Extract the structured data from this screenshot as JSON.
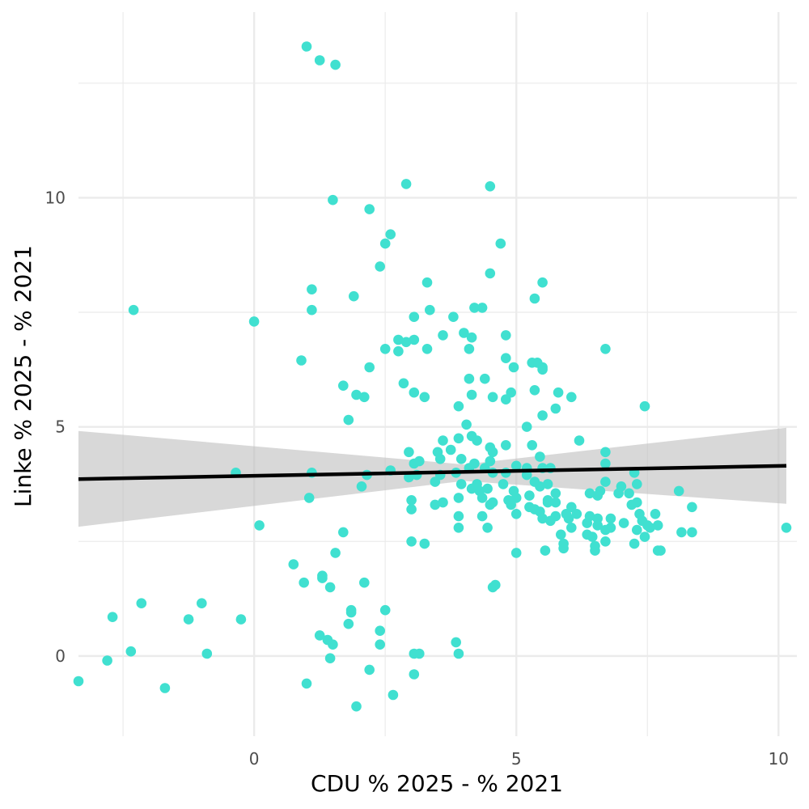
{
  "chart_data": {
    "type": "scatter",
    "xlabel": "CDU % 2025 - % 2021",
    "ylabel": "Linke % 2025 - % 2021",
    "xlim": [
      -3.35,
      10.35
    ],
    "ylim": [
      -1.75,
      14.05
    ],
    "x_ticks": [
      0,
      5,
      10
    ],
    "x_tick_labels": [
      "0",
      "5",
      "10"
    ],
    "y_ticks": [
      0,
      5,
      10
    ],
    "y_tick_labels": [
      "0",
      "5",
      "10"
    ],
    "x_minor_ticks": [
      -2.5,
      2.5,
      7.5
    ],
    "y_minor_ticks": [
      2.5,
      7.5,
      12.5
    ],
    "grid": true,
    "colors": {
      "points": "#40E0D0",
      "fit_line": "#000000",
      "confidence_band": "#BEBEBE",
      "grid": "#EBEBEB"
    },
    "fit_line": {
      "x": [
        -3.35,
        10.15
      ],
      "y": [
        3.86,
        4.15
      ]
    },
    "confidence_band": {
      "x": [
        -3.35,
        4.0,
        10.15
      ],
      "lower": [
        2.82,
        3.82,
        3.32
      ],
      "upper": [
        4.91,
        4.18,
        4.98
      ]
    },
    "points": [
      [
        1.0,
        13.3
      ],
      [
        1.25,
        13.0
      ],
      [
        1.55,
        12.9
      ],
      [
        2.9,
        10.3
      ],
      [
        4.5,
        10.25
      ],
      [
        1.5,
        9.95
      ],
      [
        2.2,
        9.75
      ],
      [
        2.6,
        9.2
      ],
      [
        2.5,
        9.0
      ],
      [
        4.7,
        9.0
      ],
      [
        2.4,
        8.5
      ],
      [
        4.5,
        8.35
      ],
      [
        3.3,
        8.15
      ],
      [
        5.5,
        8.15
      ],
      [
        1.1,
        8.0
      ],
      [
        1.9,
        7.85
      ],
      [
        5.35,
        7.8
      ],
      [
        -2.3,
        7.55
      ],
      [
        1.1,
        7.55
      ],
      [
        3.35,
        7.55
      ],
      [
        4.2,
        7.6
      ],
      [
        4.35,
        7.6
      ],
      [
        3.05,
        7.4
      ],
      [
        3.8,
        7.4
      ],
      [
        0.0,
        7.3
      ],
      [
        4.0,
        7.05
      ],
      [
        3.6,
        7.0
      ],
      [
        4.8,
        7.0
      ],
      [
        4.15,
        6.95
      ],
      [
        2.75,
        6.9
      ],
      [
        2.9,
        6.85
      ],
      [
        3.05,
        6.9
      ],
      [
        2.5,
        6.7
      ],
      [
        2.75,
        6.65
      ],
      [
        3.3,
        6.7
      ],
      [
        4.1,
        6.7
      ],
      [
        6.7,
        6.7
      ],
      [
        0.9,
        6.45
      ],
      [
        4.8,
        6.5
      ],
      [
        5.3,
        6.4
      ],
      [
        5.4,
        6.4
      ],
      [
        2.2,
        6.3
      ],
      [
        4.95,
        6.3
      ],
      [
        5.5,
        6.3
      ],
      [
        5.5,
        6.25
      ],
      [
        4.1,
        6.05
      ],
      [
        4.4,
        6.05
      ],
      [
        2.85,
        5.95
      ],
      [
        1.7,
        5.9
      ],
      [
        3.05,
        5.75
      ],
      [
        4.9,
        5.75
      ],
      [
        5.35,
        5.8
      ],
      [
        5.8,
        5.75
      ],
      [
        1.95,
        5.7
      ],
      [
        2.1,
        5.65
      ],
      [
        3.25,
        5.65
      ],
      [
        4.15,
        5.7
      ],
      [
        4.55,
        5.65
      ],
      [
        4.8,
        5.6
      ],
      [
        6.05,
        5.65
      ],
      [
        3.9,
        5.45
      ],
      [
        5.75,
        5.4
      ],
      [
        7.45,
        5.45
      ],
      [
        5.5,
        5.25
      ],
      [
        1.8,
        5.15
      ],
      [
        4.05,
        5.05
      ],
      [
        5.2,
        5.0
      ],
      [
        3.9,
        4.75
      ],
      [
        4.15,
        4.8
      ],
      [
        4.25,
        4.7
      ],
      [
        3.6,
        4.7
      ],
      [
        6.2,
        4.7
      ],
      [
        4.5,
        4.55
      ],
      [
        4.8,
        4.6
      ],
      [
        5.3,
        4.6
      ],
      [
        2.95,
        4.45
      ],
      [
        3.5,
        4.45
      ],
      [
        3.75,
        4.5
      ],
      [
        4.55,
        4.45
      ],
      [
        6.7,
        4.45
      ],
      [
        5.45,
        4.35
      ],
      [
        3.55,
        4.3
      ],
      [
        3.95,
        4.3
      ],
      [
        3.05,
        4.2
      ],
      [
        3.15,
        4.25
      ],
      [
        4.2,
        4.2
      ],
      [
        4.5,
        4.25
      ],
      [
        6.7,
        4.2
      ],
      [
        4.1,
        4.1
      ],
      [
        4.4,
        4.1
      ],
      [
        5.0,
        4.15
      ],
      [
        5.2,
        4.1
      ],
      [
        5.5,
        4.1
      ],
      [
        5.65,
        4.1
      ],
      [
        -0.35,
        4.0
      ],
      [
        1.1,
        4.0
      ],
      [
        2.15,
        3.95
      ],
      [
        2.6,
        4.05
      ],
      [
        2.95,
        3.9
      ],
      [
        3.1,
        3.95
      ],
      [
        3.55,
        3.95
      ],
      [
        3.85,
        4.0
      ],
      [
        4.55,
        4.0
      ],
      [
        4.8,
        4.0
      ],
      [
        5.2,
        3.95
      ],
      [
        7.25,
        4.0
      ],
      [
        3.45,
        3.8
      ],
      [
        3.95,
        3.75
      ],
      [
        4.25,
        3.75
      ],
      [
        4.75,
        3.75
      ],
      [
        5.35,
        3.8
      ],
      [
        5.6,
        3.75
      ],
      [
        6.7,
        3.8
      ],
      [
        7.3,
        3.75
      ],
      [
        7.0,
        3.7
      ],
      [
        2.05,
        3.7
      ],
      [
        4.15,
        3.65
      ],
      [
        4.3,
        3.6
      ],
      [
        4.45,
        3.65
      ],
      [
        4.95,
        3.6
      ],
      [
        5.45,
        3.7
      ],
      [
        5.25,
        3.5
      ],
      [
        5.75,
        3.55
      ],
      [
        6.4,
        3.55
      ],
      [
        6.6,
        3.6
      ],
      [
        7.15,
        3.55
      ],
      [
        8.1,
        3.6
      ],
      [
        1.05,
        3.45
      ],
      [
        3.0,
        3.4
      ],
      [
        3.9,
        3.45
      ],
      [
        4.35,
        3.45
      ],
      [
        4.55,
        3.35
      ],
      [
        4.85,
        3.4
      ],
      [
        5.0,
        3.45
      ],
      [
        5.6,
        3.4
      ],
      [
        6.55,
        3.5
      ],
      [
        6.95,
        3.55
      ],
      [
        7.3,
        3.35
      ],
      [
        3.45,
        3.3
      ],
      [
        3.6,
        3.35
      ],
      [
        4.5,
        3.3
      ],
      [
        4.9,
        3.3
      ],
      [
        5.25,
        3.25
      ],
      [
        5.6,
        3.35
      ],
      [
        5.75,
        3.35
      ],
      [
        7.2,
        3.3
      ],
      [
        3.0,
        3.2
      ],
      [
        5.35,
        3.2
      ],
      [
        6.05,
        3.25
      ],
      [
        8.35,
        3.25
      ],
      [
        3.9,
        3.05
      ],
      [
        4.35,
        3.05
      ],
      [
        5.0,
        3.1
      ],
      [
        5.45,
        3.15
      ],
      [
        5.75,
        3.05
      ],
      [
        5.95,
        3.1
      ],
      [
        6.15,
        3.1
      ],
      [
        6.4,
        3.05
      ],
      [
        6.55,
        3.0
      ],
      [
        6.8,
        3.0
      ],
      [
        7.35,
        3.1
      ],
      [
        7.65,
        3.1
      ],
      [
        5.5,
        3.0
      ],
      [
        5.65,
        2.95
      ],
      [
        6.0,
        3.0
      ],
      [
        6.35,
        2.9
      ],
      [
        6.55,
        2.85
      ],
      [
        7.05,
        2.9
      ],
      [
        7.4,
        2.95
      ],
      [
        7.5,
        2.85
      ],
      [
        3.9,
        2.8
      ],
      [
        4.45,
        2.8
      ],
      [
        6.05,
        2.8
      ],
      [
        6.7,
        2.75
      ],
      [
        6.8,
        2.8
      ],
      [
        7.3,
        2.75
      ],
      [
        7.55,
        2.8
      ],
      [
        7.7,
        2.85
      ],
      [
        0.1,
        2.85
      ],
      [
        5.85,
        2.65
      ],
      [
        6.35,
        2.65
      ],
      [
        6.45,
        2.6
      ],
      [
        7.45,
        2.6
      ],
      [
        8.15,
        2.7
      ],
      [
        8.35,
        2.7
      ],
      [
        10.15,
        2.8
      ],
      [
        1.7,
        2.7
      ],
      [
        3.0,
        2.5
      ],
      [
        3.25,
        2.45
      ],
      [
        5.9,
        2.45
      ],
      [
        6.5,
        2.4
      ],
      [
        6.7,
        2.5
      ],
      [
        7.25,
        2.45
      ],
      [
        5.9,
        2.35
      ],
      [
        6.5,
        2.3
      ],
      [
        7.7,
        2.3
      ],
      [
        7.75,
        2.3
      ],
      [
        5.55,
        2.3
      ],
      [
        5.0,
        2.25
      ],
      [
        1.55,
        2.25
      ],
      [
        0.75,
        2.0
      ],
      [
        1.3,
        1.75
      ],
      [
        1.3,
        1.7
      ],
      [
        0.95,
        1.6
      ],
      [
        2.1,
        1.6
      ],
      [
        1.45,
        1.5
      ],
      [
        4.6,
        1.55
      ],
      [
        4.55,
        1.5
      ],
      [
        -2.15,
        1.15
      ],
      [
        -1.0,
        1.15
      ],
      [
        1.85,
        1.0
      ],
      [
        1.85,
        0.95
      ],
      [
        2.5,
        1.0
      ],
      [
        -2.7,
        0.85
      ],
      [
        -1.25,
        0.8
      ],
      [
        -0.25,
        0.8
      ],
      [
        1.8,
        0.7
      ],
      [
        2.4,
        0.55
      ],
      [
        1.25,
        0.45
      ],
      [
        1.4,
        0.35
      ],
      [
        1.5,
        0.25
      ],
      [
        2.4,
        0.25
      ],
      [
        3.85,
        0.3
      ],
      [
        -2.35,
        0.1
      ],
      [
        -0.9,
        0.05
      ],
      [
        3.05,
        0.05
      ],
      [
        3.15,
        0.05
      ],
      [
        3.9,
        0.05
      ],
      [
        1.45,
        -0.05
      ],
      [
        -2.8,
        -0.1
      ],
      [
        2.2,
        -0.3
      ],
      [
        3.05,
        -0.4
      ],
      [
        -3.35,
        -0.55
      ],
      [
        1.0,
        -0.6
      ],
      [
        -1.7,
        -0.7
      ],
      [
        2.65,
        -0.85
      ],
      [
        1.95,
        -1.1
      ]
    ]
  }
}
